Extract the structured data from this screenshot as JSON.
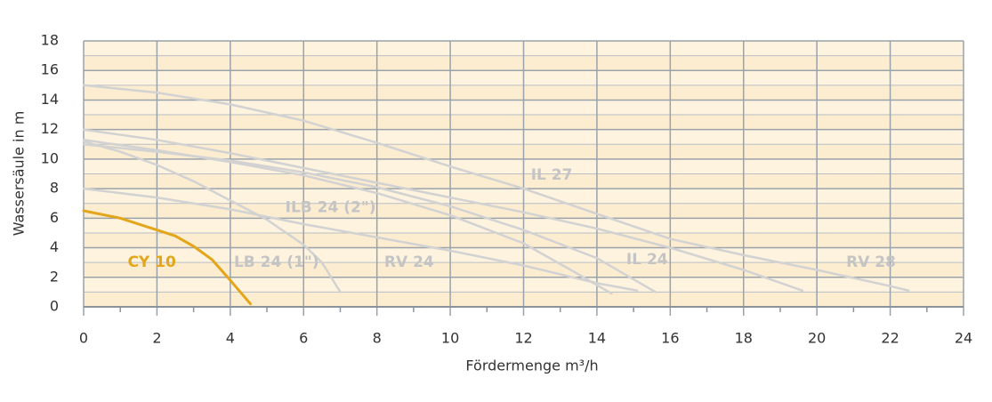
{
  "chart_data": {
    "type": "line",
    "xlabel": "Fördermenge m³/h",
    "ylabel": "Wassersäule in m",
    "xlim": [
      0,
      24
    ],
    "ylim": [
      0,
      18
    ],
    "xticks": [
      0,
      2,
      4,
      6,
      8,
      10,
      12,
      14,
      16,
      18,
      20,
      22,
      24
    ],
    "yticks": [
      0,
      2,
      4,
      6,
      8,
      10,
      12,
      14,
      16,
      18
    ],
    "grid": true,
    "series": [
      {
        "name": "CY 10",
        "color": "#e3a51a",
        "x": [
          0,
          1,
          2,
          2.5,
          3,
          3.5,
          4,
          4.55
        ],
        "values": [
          6.5,
          6.0,
          5.2,
          4.8,
          4.1,
          3.2,
          1.8,
          0.2
        ]
      },
      {
        "name": "LB 24 (1\")",
        "color": "#d2d2d2",
        "x": [
          0,
          1,
          2,
          3,
          4,
          5,
          6,
          6.5,
          7
        ],
        "values": [
          11.2,
          10.5,
          9.6,
          8.5,
          7.2,
          5.9,
          4.2,
          3.0,
          1.0
        ]
      },
      {
        "name": "ILB 24 (2\")",
        "color": "#d2d2d2",
        "x": [
          0,
          2,
          4,
          6,
          8,
          10,
          12,
          13.5,
          14.4
        ],
        "values": [
          11.3,
          10.6,
          9.8,
          8.9,
          7.7,
          6.2,
          4.3,
          2.2,
          0.9
        ]
      },
      {
        "name": "RV 24",
        "color": "#d2d2d2",
        "x": [
          0,
          2,
          4,
          6,
          8,
          10,
          12,
          14,
          15.1
        ],
        "values": [
          8,
          7.4,
          6.6,
          5.6,
          4.7,
          3.8,
          2.8,
          1.6,
          1.1
        ]
      },
      {
        "name": "IL 24",
        "color": "#d2d2d2",
        "x": [
          0,
          2,
          4,
          6,
          8,
          10,
          12,
          14,
          15.6
        ],
        "values": [
          11,
          10.5,
          9.9,
          9.1,
          8.1,
          6.8,
          5.2,
          3.3,
          1.0
        ]
      },
      {
        "name": "IL 27",
        "color": "#d2d2d2",
        "x": [
          0,
          2,
          4,
          6,
          8,
          10,
          12,
          14,
          16,
          18,
          19.6
        ],
        "values": [
          12,
          11.3,
          10.4,
          9.4,
          8.4,
          7.4,
          6.4,
          5.3,
          4.0,
          2.5,
          1.1
        ]
      },
      {
        "name": "RV 28",
        "color": "#d2d2d2",
        "x": [
          0,
          2,
          4,
          6,
          8,
          10,
          12,
          14,
          16,
          18,
          20,
          22,
          22.5
        ],
        "values": [
          15,
          14.5,
          13.7,
          12.6,
          11.1,
          9.5,
          8.0,
          6.3,
          4.6,
          3.5,
          2.5,
          1.4,
          1.1
        ]
      }
    ]
  }
}
